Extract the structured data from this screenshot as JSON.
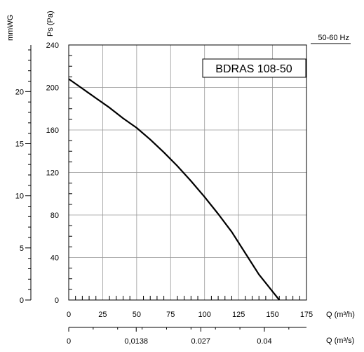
{
  "chart_data": {
    "type": "line",
    "title": "BDRAS 108-50",
    "frequency_label": "50-60 Hz",
    "ylabel_pa": "Ps (Pa)",
    "ylabel_mmwg": "mmWG",
    "xlabel_m3h": "Q (m³/h)",
    "xlabel_m3s": "Q (m³/s)",
    "xlim": [
      0,
      175
    ],
    "ylim": [
      0,
      240
    ],
    "grid": true,
    "x_ticks": [
      "0",
      "25",
      "50",
      "75",
      "100",
      "125",
      "150",
      "175"
    ],
    "y_ticks": [
      "0",
      "40",
      "80",
      "120",
      "160",
      "200",
      "240"
    ],
    "mmwg_ticks": [
      "0",
      "5",
      "10",
      "15",
      "20"
    ],
    "m3s_ticks": [
      "0",
      "0,0138",
      "0.027",
      "0.04"
    ],
    "series": [
      {
        "x": [
          0,
          10,
          20,
          30,
          40,
          50,
          60,
          70,
          80,
          90,
          100,
          110,
          120,
          130,
          140,
          150,
          155
        ],
        "y": [
          208,
          199,
          190,
          181,
          171,
          162,
          151,
          139,
          126,
          112,
          97,
          81,
          64,
          44,
          24,
          8,
          0
        ]
      }
    ]
  }
}
